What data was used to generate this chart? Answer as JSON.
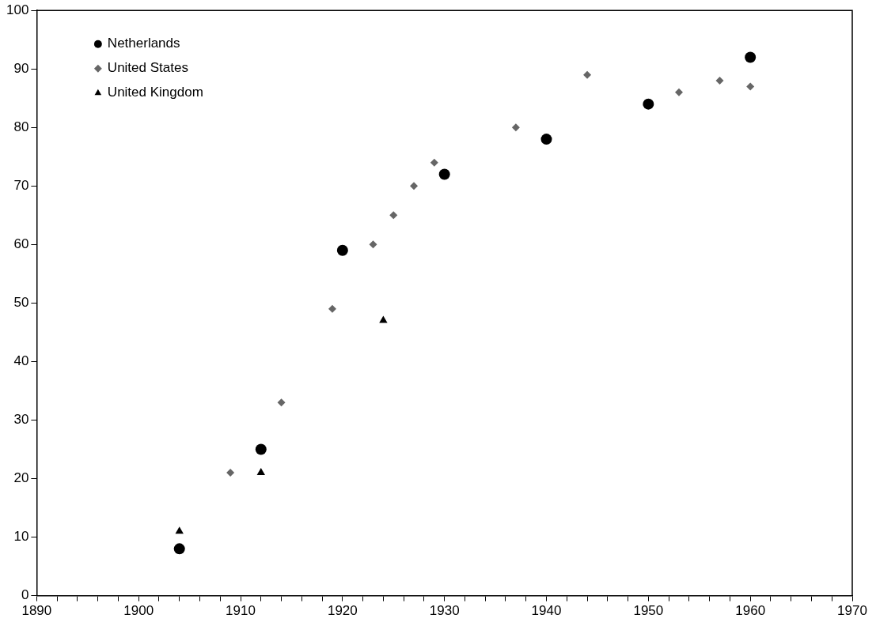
{
  "chart_data": {
    "type": "scatter",
    "xlim": [
      1890,
      1970
    ],
    "ylim": [
      0,
      100
    ],
    "xticks": [
      1890,
      {
        "value": 1892,
        "label": null
      },
      {
        "value": 1894,
        "label": null
      },
      {
        "value": 1896,
        "label": null
      },
      {
        "value": 1898,
        "label": null
      },
      1900,
      {
        "value": 1902,
        "label": null
      },
      {
        "value": 1904,
        "label": null
      },
      {
        "value": 1906,
        "label": null
      },
      {
        "value": 1908,
        "label": null
      },
      1910,
      {
        "value": 1912,
        "label": null
      },
      {
        "value": 1914,
        "label": null
      },
      {
        "value": 1916,
        "label": null
      },
      {
        "value": 1918,
        "label": null
      },
      1920,
      {
        "value": 1922,
        "label": null
      },
      {
        "value": 1924,
        "label": null
      },
      {
        "value": 1926,
        "label": null
      },
      {
        "value": 1928,
        "label": null
      },
      1930,
      {
        "value": 1932,
        "label": null
      },
      {
        "value": 1934,
        "label": null
      },
      {
        "value": 1936,
        "label": null
      },
      {
        "value": 1938,
        "label": null
      },
      1940,
      {
        "value": 1942,
        "label": null
      },
      {
        "value": 1944,
        "label": null
      },
      {
        "value": 1946,
        "label": null
      },
      {
        "value": 1948,
        "label": null
      },
      1950,
      {
        "value": 1952,
        "label": null
      },
      {
        "value": 1954,
        "label": null
      },
      {
        "value": 1956,
        "label": null
      },
      {
        "value": 1958,
        "label": null
      },
      1960,
      {
        "value": 1962,
        "label": null
      },
      {
        "value": 1964,
        "label": null
      },
      {
        "value": 1966,
        "label": null
      },
      {
        "value": 1968,
        "label": null
      },
      1970
    ],
    "yticks": [
      0,
      10,
      20,
      30,
      40,
      50,
      60,
      70,
      80,
      90,
      100
    ],
    "grid": false,
    "legend": "top left",
    "series": [
      {
        "name": "Netherlands",
        "color": "#000000",
        "marker": "circle",
        "x": [
          1904,
          1912,
          1920,
          1930,
          1940,
          1950,
          1960
        ],
        "values": [
          8,
          25,
          59,
          72,
          78,
          84,
          92
        ]
      },
      {
        "name": "United States",
        "color": "#666666",
        "marker": "diamond",
        "x": [
          1909,
          1914,
          1919,
          1923,
          1925,
          1927,
          1929,
          1937,
          1944,
          1953,
          1957,
          1960
        ],
        "values": [
          21,
          33,
          49,
          60,
          65,
          70,
          74,
          80,
          89,
          86,
          88,
          87
        ]
      },
      {
        "name": "United Kingdom",
        "color": "#000000",
        "marker": "triangle",
        "x": [
          1904,
          1912,
          1924
        ],
        "values": [
          11,
          21,
          47
        ]
      }
    ]
  }
}
